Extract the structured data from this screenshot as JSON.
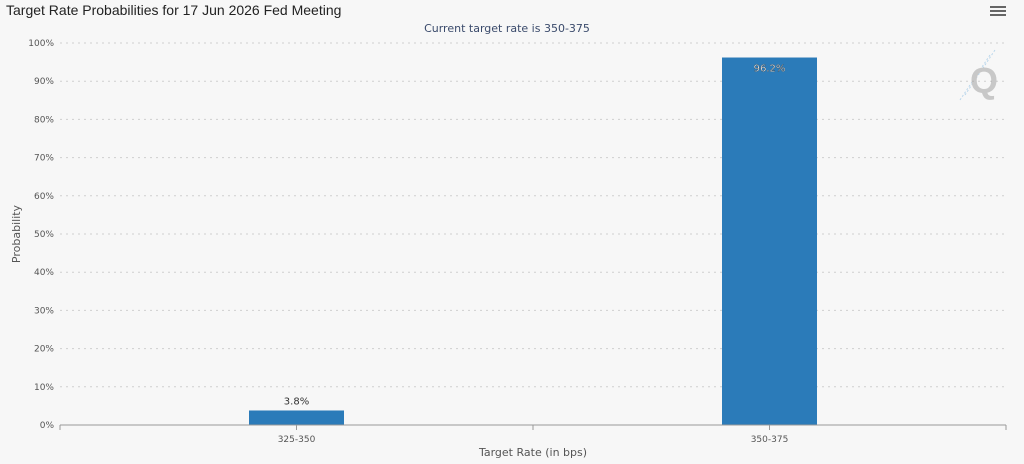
{
  "chart_title": "Target Rate Probabilities for 17 Jun 2026 Fed Meeting",
  "chart_data": {
    "type": "bar",
    "title": "Target Rate Probabilities for 17 Jun 2026 Fed Meeting",
    "subtitle": "Current target rate is 350-375",
    "xlabel": "Target Rate (in bps)",
    "ylabel": "Probability",
    "categories": [
      "325-350",
      "350-375"
    ],
    "values": [
      3.8,
      96.2
    ],
    "data_labels": [
      "3.8%",
      "96.2%"
    ],
    "ylim": [
      0,
      100
    ],
    "yticks": [
      "0%",
      "10%",
      "20%",
      "30%",
      "40%",
      "50%",
      "60%",
      "70%",
      "80%",
      "90%",
      "100%"
    ],
    "grid": true,
    "bar_color": "#2b7bb9"
  },
  "icons": {
    "menu": "hamburger-menu-icon",
    "watermark": "q-logo-watermark"
  }
}
